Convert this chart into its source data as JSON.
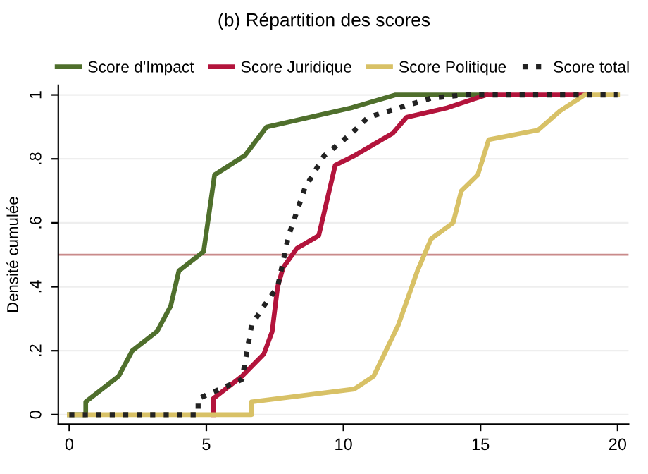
{
  "chart_data": {
    "type": "line",
    "title": "(b) Répartition des scores",
    "ylabel": "Densité cumulée",
    "xlim": [
      -0.4,
      20.4
    ],
    "xticks": [
      0,
      5,
      10,
      15,
      20
    ],
    "ylim": [
      -0.03,
      1.03
    ],
    "yticks": [
      0,
      {
        "value": 0.2,
        "label": ".2"
      },
      {
        "value": 0.4,
        "label": ".4"
      },
      {
        "value": 0.6,
        "label": ".6"
      },
      {
        "value": 0.8,
        "label": ".8"
      },
      1
    ],
    "grid": "y",
    "legend": "top",
    "marker": "none",
    "ref_lines": [
      {
        "axis": "y",
        "value": 0.5,
        "color": "#c98a8a"
      }
    ],
    "series": [
      {
        "name": "Score d'Impact",
        "color": "#4f6f2c",
        "line_style": "solid",
        "x": [
          0,
          0.6,
          0.6,
          1.8,
          2.3,
          3.2,
          3.7,
          4.0,
          4.9,
          5.3,
          6.4,
          7.2,
          10.3,
          11.9,
          15.2
        ],
        "values": [
          0,
          0,
          0.04,
          0.12,
          0.2,
          0.26,
          0.34,
          0.45,
          0.51,
          0.75,
          0.81,
          0.9,
          0.96,
          1,
          1
        ]
      },
      {
        "name": "Score Juridique",
        "color": "#b3143c",
        "line_style": "solid",
        "x": [
          5.25,
          5.25,
          6.3,
          7.1,
          7.4,
          7.6,
          7.8,
          8.3,
          9.1,
          9.7,
          10.4,
          11.8,
          12.3,
          13.8,
          15.2,
          18.8
        ],
        "values": [
          0,
          0.05,
          0.12,
          0.19,
          0.26,
          0.4,
          0.46,
          0.52,
          0.56,
          0.78,
          0.81,
          0.88,
          0.93,
          0.96,
          1,
          1
        ]
      },
      {
        "name": "Score Politique",
        "color": "#d8c166",
        "line_style": "solid",
        "x": [
          0,
          6.65,
          6.65,
          10.4,
          11.1,
          12.0,
          12.7,
          13.2,
          14.0,
          14.3,
          14.9,
          15.3,
          17.1,
          17.9,
          18.8,
          20
        ],
        "values": [
          0,
          0,
          0.04,
          0.08,
          0.12,
          0.28,
          0.45,
          0.55,
          0.6,
          0.7,
          0.75,
          0.86,
          0.89,
          0.95,
          1,
          1
        ]
      },
      {
        "name": "Score total",
        "color": "#222222",
        "line_style": "dotted",
        "x": [
          0,
          4.7,
          4.7,
          6.3,
          6.65,
          7.1,
          7.6,
          8.0,
          8.6,
          9.3,
          10.3,
          10.9,
          13.2,
          14.4,
          20
        ],
        "values": [
          0,
          0,
          0.05,
          0.11,
          0.28,
          0.34,
          0.4,
          0.56,
          0.71,
          0.81,
          0.88,
          0.93,
          0.99,
          1,
          1
        ]
      }
    ]
  }
}
